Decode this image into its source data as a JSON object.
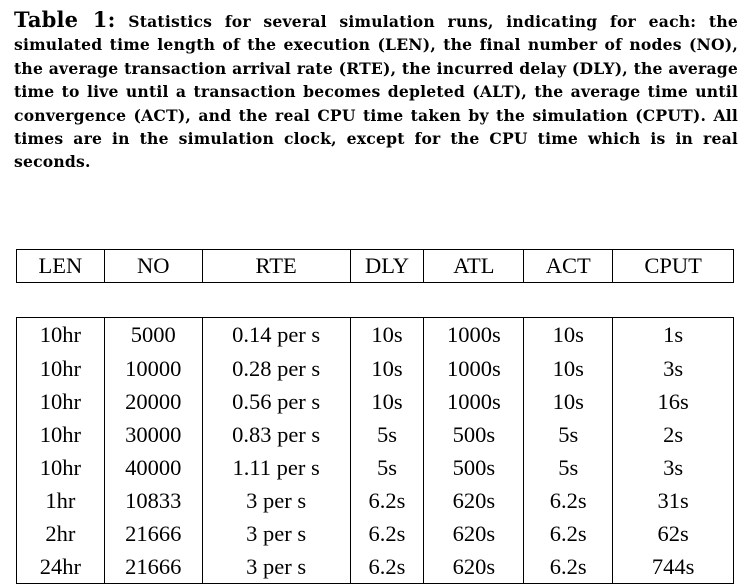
{
  "caption": {
    "label": "Table 1:",
    "text": "Statistics for several simulation runs, indicating for each: the simulated time length of the execution (LEN), the final number of nodes (NO), the average transaction arrival rate (RTE), the incurred delay (DLY), the average time to live until a transaction becomes depleted (ALT), the average time until convergence (ACT), and the real CPU time taken by the simulation (CPUT). All times are in the simulation clock, except for the CPU time which is in real seconds."
  },
  "table": {
    "headers": [
      "LEN",
      "NO",
      "RTE",
      "DLY",
      "ATL",
      "ACT",
      "CPUT"
    ],
    "rows": [
      [
        "10hr",
        "5000",
        "0.14 per s",
        "10s",
        "1000s",
        "10s",
        "1s"
      ],
      [
        "10hr",
        "10000",
        "0.28 per s",
        "10s",
        "1000s",
        "10s",
        "3s"
      ],
      [
        "10hr",
        "20000",
        "0.56 per s",
        "10s",
        "1000s",
        "10s",
        "16s"
      ],
      [
        "10hr",
        "30000",
        "0.83 per s",
        "5s",
        "500s",
        "5s",
        "2s"
      ],
      [
        "10hr",
        "40000",
        "1.11 per s",
        "5s",
        "500s",
        "5s",
        "3s"
      ],
      [
        "1hr",
        "10833",
        "3 per s",
        "6.2s",
        "620s",
        "6.2s",
        "31s"
      ],
      [
        "2hr",
        "21666",
        "3 per s",
        "6.2s",
        "620s",
        "6.2s",
        "62s"
      ],
      [
        "24hr",
        "21666",
        "3 per s",
        "6.2s",
        "620s",
        "6.2s",
        "744s"
      ]
    ]
  }
}
